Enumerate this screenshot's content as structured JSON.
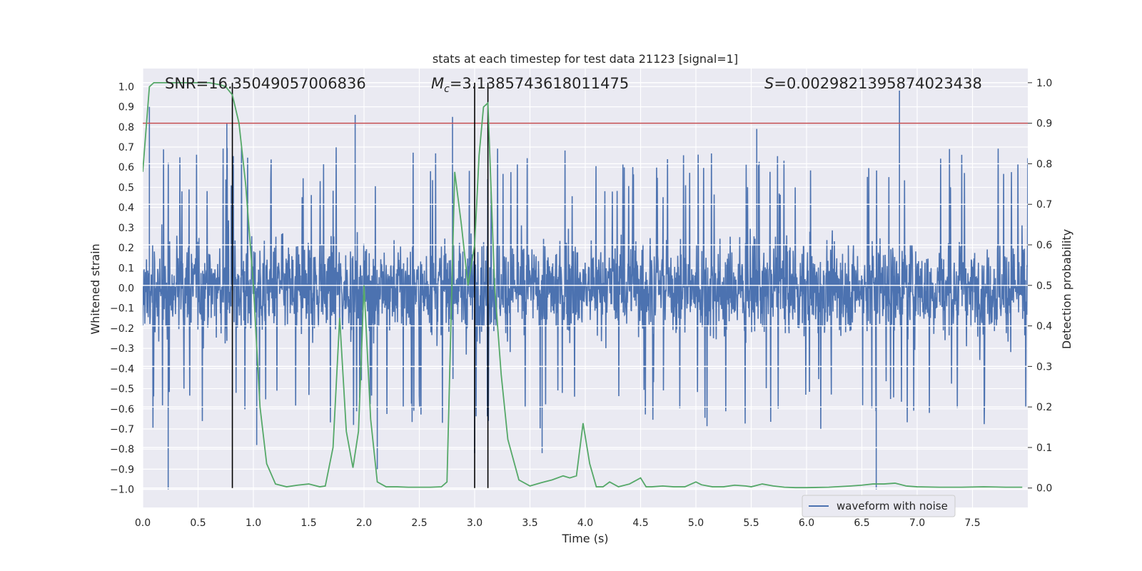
{
  "chart_data": {
    "type": "line",
    "title": "stats at each timestep for test data 21123 [signal=1]",
    "xlabel": "Time (s)",
    "ylabel_left": "Whitened strain",
    "ylabel_right": "Detection probability",
    "xlim": [
      0.0,
      8.0
    ],
    "ylim_left": [
      -1.09,
      1.09
    ],
    "ylim_right": [
      -0.048,
      1.035
    ],
    "x_ticks": [
      "0.0",
      "0.5",
      "1.0",
      "1.5",
      "2.0",
      "2.5",
      "3.0",
      "3.5",
      "4.0",
      "4.5",
      "5.0",
      "5.5",
      "6.0",
      "6.5",
      "7.0",
      "7.5"
    ],
    "y_left_ticks": [
      "1.0",
      "0.9",
      "0.8",
      "0.7",
      "0.6",
      "0.5",
      "0.4",
      "0.3",
      "0.2",
      "0.1",
      "0.0",
      "−0.1",
      "−0.2",
      "−0.3",
      "−0.4",
      "−0.5",
      "−0.6",
      "−0.7",
      "−0.8",
      "−0.9",
      "−1.0"
    ],
    "y_right_ticks": [
      "1.0",
      "0.9",
      "0.8",
      "0.7",
      "0.6",
      "0.5",
      "0.4",
      "0.3",
      "0.2",
      "0.1",
      "0.0"
    ],
    "annotations": {
      "snr": "SNR=16.35049057006836",
      "mc_symbol": "M",
      "mc_sub": "c",
      "mc_value": "=3.1385743618011475",
      "s_symbol": "S",
      "s_value": "=0.0029821395874023438"
    },
    "threshold": {
      "probability": 0.9,
      "color": "#c44e52"
    },
    "vertical_lines": [
      0.81,
      3.0,
      3.12
    ],
    "legend": {
      "label": "waveform with noise",
      "placement": "bottom-right"
    },
    "series": [
      {
        "name": "waveform with noise",
        "axis": "left",
        "color": "#4c72b0",
        "description": "dense noisy whitened strain, band roughly -0.45..0.45 with spikes",
        "spikes": [
          [
            0.06,
            0.9
          ],
          [
            0.23,
            -1.0
          ],
          [
            0.76,
            0.82
          ],
          [
            1.92,
            0.86
          ],
          [
            2.8,
            0.85
          ],
          [
            3.0,
            -0.82
          ],
          [
            3.61,
            -0.82
          ],
          [
            5.55,
            0.79
          ],
          [
            6.63,
            -1.0
          ],
          [
            6.84,
            0.98
          ],
          [
            1.03,
            -0.78
          ],
          [
            2.12,
            -0.9
          ]
        ]
      },
      {
        "name": "detection probability",
        "axis": "right",
        "color": "#55a868",
        "x": [
          0.0,
          0.06,
          0.1,
          0.2,
          0.3,
          0.4,
          0.5,
          0.6,
          0.7,
          0.75,
          0.81,
          0.87,
          0.93,
          1.0,
          1.06,
          1.12,
          1.2,
          1.3,
          1.4,
          1.5,
          1.6,
          1.65,
          1.72,
          1.78,
          1.84,
          1.9,
          1.95,
          2.0,
          2.06,
          2.12,
          2.2,
          2.3,
          2.4,
          2.5,
          2.6,
          2.7,
          2.75,
          2.82,
          2.88,
          2.94,
          3.0,
          3.04,
          3.08,
          3.12,
          3.18,
          3.24,
          3.3,
          3.4,
          3.5,
          3.6,
          3.7,
          3.8,
          3.86,
          3.92,
          3.98,
          4.04,
          4.1,
          4.16,
          4.22,
          4.3,
          4.4,
          4.5,
          4.55,
          4.6,
          4.7,
          4.8,
          4.9,
          5.0,
          5.05,
          5.15,
          5.25,
          5.35,
          5.45,
          5.5,
          5.6,
          5.7,
          5.8,
          5.9,
          6.0,
          6.2,
          6.4,
          6.5,
          6.6,
          6.7,
          6.8,
          6.9,
          7.0,
          7.2,
          7.4,
          7.6,
          7.8,
          7.95
        ],
        "values": [
          0.78,
          0.99,
          1.0,
          1.0,
          1.0,
          1.0,
          1.0,
          1.0,
          0.995,
          0.99,
          0.97,
          0.9,
          0.75,
          0.5,
          0.2,
          0.06,
          0.01,
          0.003,
          0.007,
          0.01,
          0.003,
          0.005,
          0.1,
          0.42,
          0.14,
          0.05,
          0.14,
          0.5,
          0.17,
          0.015,
          0.003,
          0.003,
          0.002,
          0.002,
          0.002,
          0.003,
          0.015,
          0.78,
          0.65,
          0.5,
          0.6,
          0.82,
          0.94,
          0.95,
          0.5,
          0.28,
          0.12,
          0.02,
          0.005,
          0.013,
          0.02,
          0.03,
          0.025,
          0.03,
          0.16,
          0.06,
          0.003,
          0.003,
          0.015,
          0.003,
          0.01,
          0.025,
          0.003,
          0.003,
          0.005,
          0.003,
          0.003,
          0.015,
          0.008,
          0.003,
          0.003,
          0.007,
          0.005,
          0.003,
          0.01,
          0.005,
          0.002,
          0.001,
          0.001,
          0.002,
          0.005,
          0.007,
          0.01,
          0.01,
          0.012,
          0.005,
          0.003,
          0.002,
          0.002,
          0.003,
          0.002,
          0.002
        ]
      }
    ]
  }
}
